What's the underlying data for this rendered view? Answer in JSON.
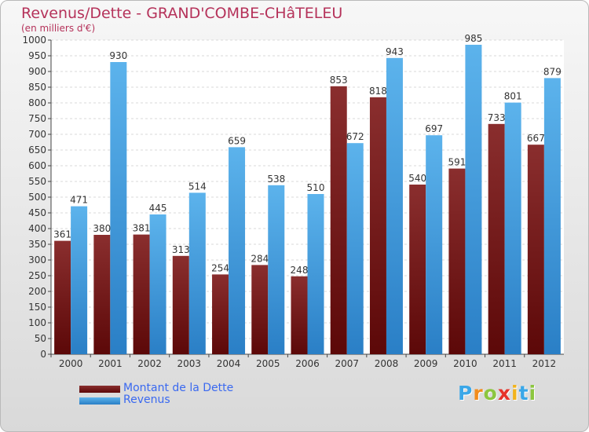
{
  "chart_data": {
    "type": "bar",
    "title": "Revenus/Dette - GRAND'COMBE-CHâTELEU",
    "subtitle": "(en milliers d'€)",
    "categories": [
      "2000",
      "2001",
      "2002",
      "2003",
      "2004",
      "2005",
      "2006",
      "2007",
      "2008",
      "2009",
      "2010",
      "2011",
      "2012"
    ],
    "series": [
      {
        "name": "Montant de la Dette",
        "color": "#7a1414",
        "values": [
          361,
          380,
          381,
          313,
          254,
          284,
          248,
          853,
          818,
          540,
          591,
          733,
          667
        ]
      },
      {
        "name": "Revenus",
        "color": "#4a9fe0",
        "values": [
          471,
          930,
          445,
          514,
          659,
          538,
          510,
          672,
          943,
          697,
          985,
          801,
          879
        ]
      }
    ],
    "ylim": [
      0,
      1000
    ],
    "ytick_step": 50,
    "grid": true,
    "legend_position": "bottom-left"
  },
  "brand": {
    "letters": [
      "P",
      "r",
      "o",
      "x",
      "i",
      "t",
      "i"
    ],
    "colors": [
      "#3aa7e8",
      "#f28c1c",
      "#8cc63f",
      "#e6332a",
      "#f2b31c",
      "#3aa7e8",
      "#8cc63f"
    ]
  }
}
